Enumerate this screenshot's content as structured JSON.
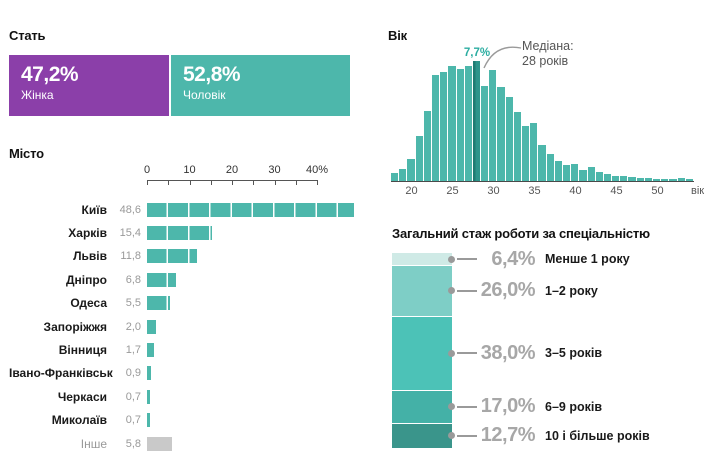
{
  "colors": {
    "purple": "#8b3fa9",
    "teal": "#4db7ab",
    "teal_median": "#2d958b",
    "gray_bar": "#c9c9c9",
    "gray_text": "#999999",
    "big_pct_gray": "#a7a7a7",
    "leader_gray": "#9a9a9a",
    "experience_segments": [
      "#cfeae6",
      "#7ecec6",
      "#4cc2b7",
      "#44b1a7",
      "#3a958b"
    ]
  },
  "gender": {
    "title": "Стать",
    "segments": [
      {
        "key": "female",
        "label": "Жінка",
        "value_label": "47,2%",
        "pct": 47.2,
        "color": "#8b3fa9"
      },
      {
        "key": "male",
        "label": "Чоловік",
        "value_label": "52,8%",
        "pct": 52.8,
        "color": "#4db7ab"
      }
    ]
  },
  "city": {
    "title": "Місто",
    "axis_labels": [
      "0",
      "10",
      "20",
      "30",
      "40%"
    ],
    "rows": [
      {
        "label": "Київ",
        "value_label": "48,6",
        "pct": 48.6,
        "muted": false
      },
      {
        "label": "Харків",
        "value_label": "15,4",
        "pct": 15.4,
        "muted": false
      },
      {
        "label": "Львів",
        "value_label": "11,8",
        "pct": 11.8,
        "muted": false
      },
      {
        "label": "Дніпро",
        "value_label": "6,8",
        "pct": 6.8,
        "muted": false
      },
      {
        "label": "Одеса",
        "value_label": "5,5",
        "pct": 5.5,
        "muted": false
      },
      {
        "label": "Запоріжжя",
        "value_label": "2,0",
        "pct": 2.0,
        "muted": false
      },
      {
        "label": "Вінниця",
        "value_label": "1,7",
        "pct": 1.7,
        "muted": false
      },
      {
        "label": "Івано-Франківськ",
        "value_label": "0,9",
        "pct": 0.9,
        "muted": false
      },
      {
        "label": "Черкаси",
        "value_label": "0,7",
        "pct": 0.7,
        "muted": false
      },
      {
        "label": "Миколаїв",
        "value_label": "0,7",
        "pct": 0.7,
        "muted": false
      },
      {
        "label": "Інше",
        "value_label": "5,8",
        "pct": 5.8,
        "muted": true
      }
    ]
  },
  "age": {
    "title": "Вік",
    "peak_label": "7,7%",
    "median_line1": "Медіана:",
    "median_line2": "28 років",
    "axis_unit_label": "вік",
    "start_age": 18,
    "highlight_age": 28,
    "tick_ages": [
      20,
      25,
      30,
      35,
      40,
      45,
      50
    ],
    "values": [
      0.5,
      0.8,
      1.4,
      2.9,
      4.5,
      6.8,
      7.0,
      7.4,
      7.2,
      7.4,
      7.7,
      6.1,
      7.1,
      6.0,
      5.4,
      4.4,
      3.5,
      3.7,
      2.3,
      1.7,
      1.3,
      1.0,
      1.1,
      0.7,
      0.9,
      0.6,
      0.45,
      0.35,
      0.3,
      0.25,
      0.2,
      0.18,
      0.15,
      0.12,
      0.12,
      0.18,
      0.1
    ]
  },
  "experience": {
    "title": "Загальний стаж роботи за спеціальністю",
    "segments": [
      {
        "pct_label": "6,4%",
        "label": "Менше 1 року",
        "pct": 6.4,
        "color": "#cfeae6"
      },
      {
        "pct_label": "26,0%",
        "label": "1–2 року",
        "pct": 26.0,
        "color": "#7ecec6"
      },
      {
        "pct_label": "38,0%",
        "label": "3–5 років",
        "pct": 38.0,
        "color": "#4cc2b7"
      },
      {
        "pct_label": "17,0%",
        "label": "6–9 років",
        "pct": 17.0,
        "color": "#44b1a7"
      },
      {
        "pct_label": "12,7%",
        "label": "10 і більше років",
        "pct": 12.7,
        "color": "#3a958b"
      }
    ]
  },
  "chart_data": [
    {
      "type": "bar",
      "layout": "horizontal-stacked",
      "title": "Стать",
      "categories": [
        "Жінка",
        "Чоловік"
      ],
      "values": [
        47.2,
        52.8
      ],
      "unit": "%",
      "colors": [
        "#8b3fa9",
        "#4db7ab"
      ]
    },
    {
      "type": "bar",
      "layout": "horizontal",
      "title": "Місто",
      "categories": [
        "Київ",
        "Харків",
        "Львів",
        "Дніпро",
        "Одеса",
        "Запоріжжя",
        "Вінниця",
        "Івано-Франківськ",
        "Черкаси",
        "Миколаїв",
        "Інше"
      ],
      "values": [
        48.6,
        15.4,
        11.8,
        6.8,
        5.5,
        2.0,
        1.7,
        0.9,
        0.7,
        0.7,
        5.8
      ],
      "unit": "%",
      "xlim": [
        0,
        40
      ],
      "x_ticks": [
        0,
        10,
        20,
        30,
        40
      ],
      "grid": false
    },
    {
      "type": "bar",
      "subtype": "histogram",
      "title": "Вік",
      "xlabel": "вік",
      "x_start": 18,
      "x_step": 1,
      "values": [
        0.5,
        0.8,
        1.4,
        2.9,
        4.5,
        6.8,
        7.0,
        7.4,
        7.2,
        7.4,
        7.7,
        6.1,
        7.1,
        6.0,
        5.4,
        4.4,
        3.5,
        3.7,
        2.3,
        1.7,
        1.3,
        1.0,
        1.1,
        0.7,
        0.9,
        0.6,
        0.45,
        0.35,
        0.3,
        0.25,
        0.2,
        0.18,
        0.15,
        0.12,
        0.12,
        0.18,
        0.1
      ],
      "unit": "%",
      "x_ticks": [
        20,
        25,
        30,
        35,
        40,
        45,
        50
      ],
      "median": 28,
      "median_value": 7.7,
      "annotations": [
        "7,7%",
        "Медіана: 28 років"
      ]
    },
    {
      "type": "bar",
      "layout": "vertical-stacked",
      "title": "Загальний стаж роботи за спеціальністю",
      "categories": [
        "Менше 1 року",
        "1–2 року",
        "3–5 років",
        "6–9 років",
        "10 і більше років"
      ],
      "values": [
        6.4,
        26.0,
        38.0,
        17.0,
        12.7
      ],
      "unit": "%",
      "colors": [
        "#cfeae6",
        "#7ecec6",
        "#4cc2b7",
        "#44b1a7",
        "#3a958b"
      ]
    }
  ]
}
